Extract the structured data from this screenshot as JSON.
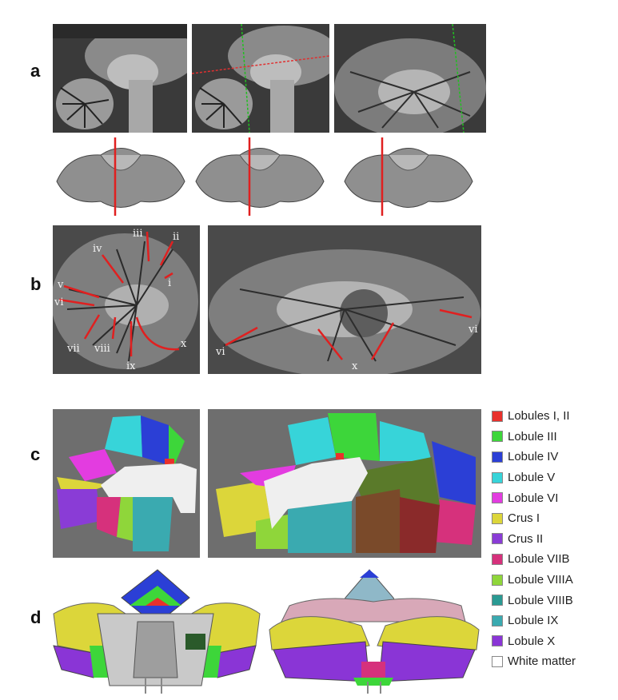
{
  "panels": {
    "a": "a",
    "b": "b",
    "c": "c",
    "d": "d"
  },
  "panel_b_labels": {
    "left": [
      "iii",
      "ii",
      "iv",
      "i",
      "v",
      "vi",
      "vii",
      "viii",
      "ix",
      "x"
    ],
    "right": [
      "vi",
      "x",
      "vi"
    ]
  },
  "legend": [
    {
      "label": "Lobules I, II",
      "color": "#e8312c"
    },
    {
      "label": "Lobule III",
      "color": "#3dd63a"
    },
    {
      "label": "Lobule IV",
      "color": "#2b3fd6"
    },
    {
      "label": "Lobule V",
      "color": "#37d4d9"
    },
    {
      "label": "Lobule VI",
      "color": "#e33ce0"
    },
    {
      "label": "Crus I",
      "color": "#dcd63a"
    },
    {
      "label": "Crus II",
      "color": "#8a3cd6"
    },
    {
      "label": "Lobule VIIB",
      "color": "#d6317c"
    },
    {
      "label": "Lobule VIIIA",
      "color": "#8fd63a"
    },
    {
      "label": "Lobule VIIIB",
      "color": "#2a9a93"
    },
    {
      "label": "Lobule IX",
      "color": "#3aaab0"
    },
    {
      "label": "Lobule X",
      "color": "#8a35d6"
    },
    {
      "label": "White matter",
      "color": "#ffffff"
    }
  ]
}
